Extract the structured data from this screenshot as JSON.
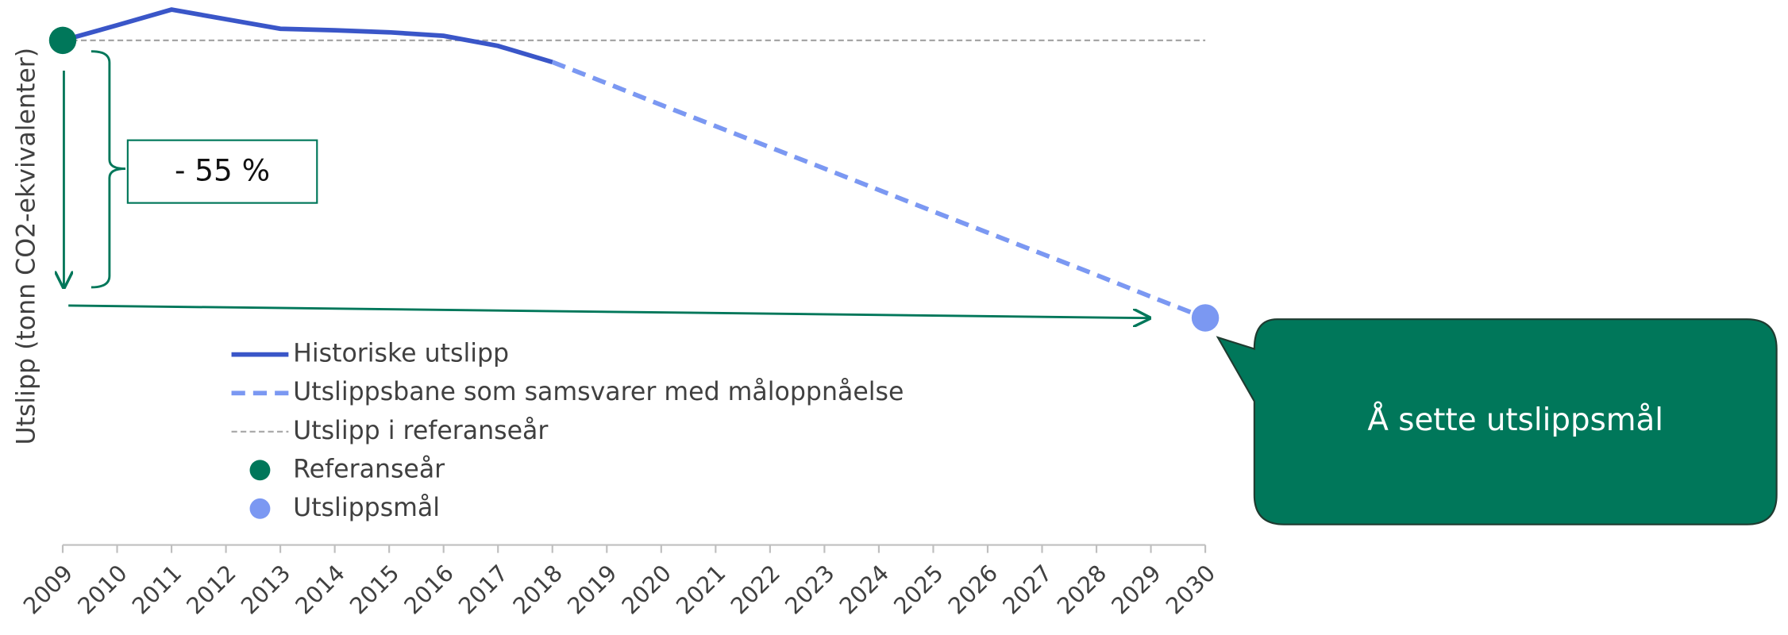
{
  "chart_data": {
    "type": "line",
    "y_label": "Utslipp (tonn CO2-ekvivalenter)",
    "x": [
      2009,
      2010,
      2011,
      2012,
      2013,
      2014,
      2015,
      2016,
      2017,
      2018,
      2019,
      2020,
      2021,
      2022,
      2023,
      2024,
      2025,
      2026,
      2027,
      2028,
      2029,
      2030
    ],
    "xlim": [
      2009,
      2030
    ],
    "xticks": [
      2009,
      2010,
      2011,
      2012,
      2013,
      2014,
      2015,
      2016,
      2017,
      2018,
      2019,
      2020,
      2021,
      2022,
      2023,
      2024,
      2025,
      2026,
      2027,
      2028,
      2029,
      2030
    ],
    "ylim": [
      0,
      108
    ],
    "series": [
      {
        "name": "Historiske utslipp",
        "color": "#3a56c8",
        "dash": false,
        "values": [
          100,
          103,
          106.1,
          104.2,
          102.3,
          102,
          101.6,
          100.9,
          98.9,
          95.7,
          null,
          null,
          null,
          null,
          null,
          null,
          null,
          null,
          null,
          null,
          null,
          null
        ]
      },
      {
        "name": "Utslippsbane som samsvarer med måloppnåelse",
        "color": "#7b98f2",
        "dash": true,
        "values": [
          null,
          null,
          null,
          null,
          null,
          null,
          null,
          null,
          null,
          95.7,
          91.5,
          87.2,
          83.0,
          78.8,
          74.6,
          70.35,
          66.1,
          61.9,
          57.7,
          53.5,
          49.2,
          45.0
        ]
      },
      {
        "name": "Utslipp i referanseår",
        "color": "#a6a6a6",
        "dash": true,
        "thin": true,
        "values": [
          100,
          100,
          100,
          100,
          100,
          100,
          100,
          100,
          100,
          100,
          100,
          100,
          100,
          100,
          100,
          100,
          100,
          100,
          100,
          100,
          100,
          100
        ]
      }
    ],
    "points": [
      {
        "name": "Referanseår",
        "color": "#00775a",
        "x": 2009,
        "y": 100
      },
      {
        "name": "Utslippsmål",
        "color": "#7b98f2",
        "x": 2030,
        "y": 45
      }
    ],
    "annotations": [
      "- 55 %",
      "Å sette utslippsmål"
    ]
  }
}
